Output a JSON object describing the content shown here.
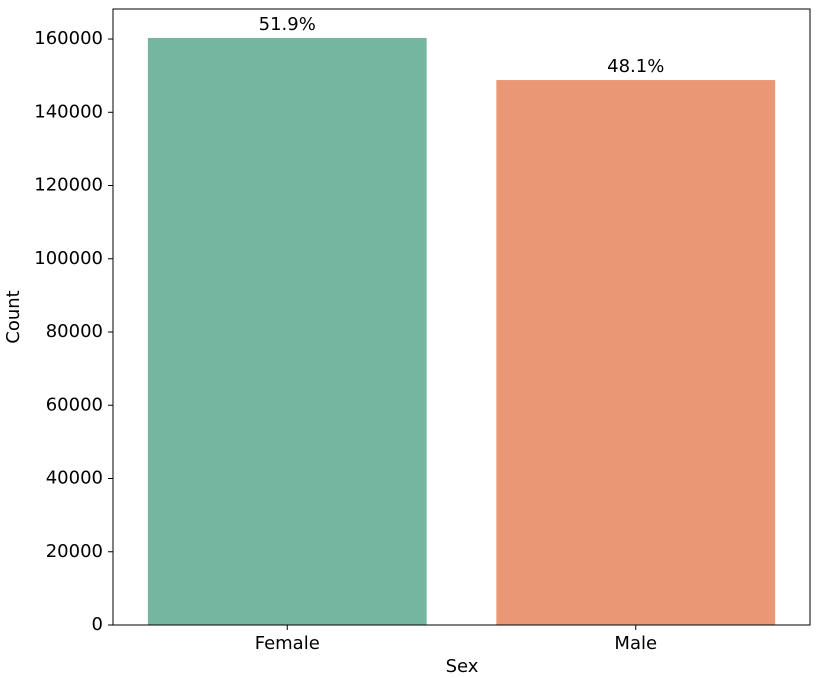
{
  "chart_data": {
    "type": "bar",
    "categories": [
      "Female",
      "Male"
    ],
    "values": [
      160300,
      148800
    ],
    "annotations": [
      "51.9%",
      "48.1%"
    ],
    "colors": [
      "#74b6a0",
      "#ea9774"
    ],
    "xlabel": "Sex",
    "ylabel": "Count",
    "ylim": [
      0,
      168200
    ],
    "yticks": [
      0,
      20000,
      40000,
      60000,
      80000,
      100000,
      120000,
      140000,
      160000
    ],
    "grid": false
  }
}
